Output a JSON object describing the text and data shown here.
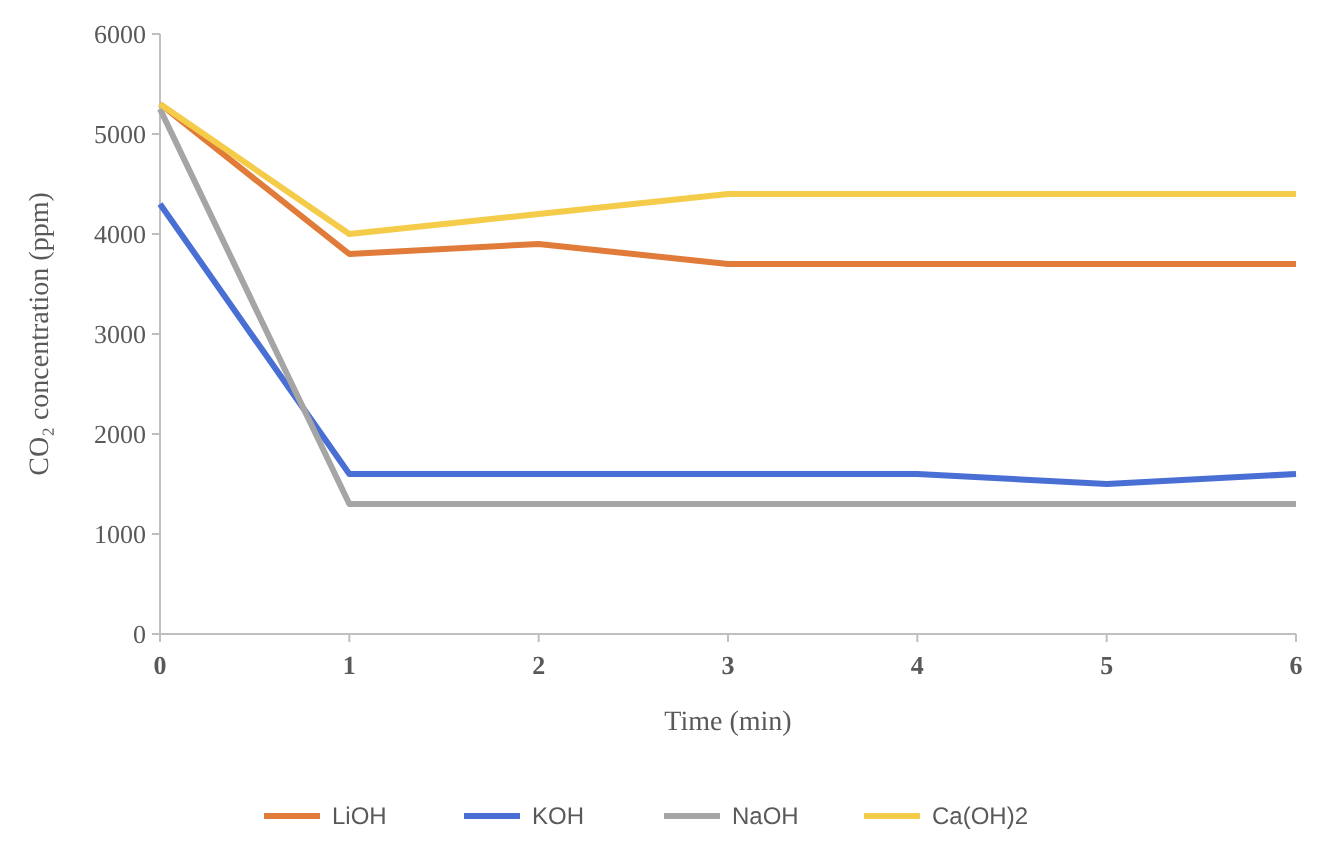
{
  "chart_data": {
    "type": "line",
    "xlabel": "Time (min)",
    "ylabel": "CO₂ concentration (ppm)",
    "x": [
      0,
      1,
      2,
      3,
      4,
      5,
      6
    ],
    "xlim": [
      0,
      6
    ],
    "xticks": [
      0,
      1,
      2,
      3,
      4,
      5,
      6
    ],
    "ylim": [
      0,
      6000
    ],
    "yticks": [
      0,
      1000,
      2000,
      3000,
      4000,
      5000,
      6000
    ],
    "grid": false,
    "legend": "bottom",
    "marker": "none",
    "line_style": "solid",
    "series": [
      {
        "name": "LiOH",
        "color": "#e07b39",
        "values": [
          5300,
          3800,
          3900,
          3700,
          3700,
          3700,
          3700
        ]
      },
      {
        "name": "KOH",
        "color": "#4a6fd4",
        "values": [
          4300,
          1600,
          1600,
          1600,
          1600,
          1500,
          1600
        ]
      },
      {
        "name": "NaOH",
        "color": "#a5a5a5",
        "values": [
          5250,
          1300,
          1300,
          1300,
          1300,
          1300,
          1300
        ]
      },
      {
        "name": "Ca(OH)2",
        "color": "#f5cb4a",
        "values": [
          5300,
          4000,
          4200,
          4400,
          4400,
          4400,
          4400
        ]
      }
    ]
  }
}
